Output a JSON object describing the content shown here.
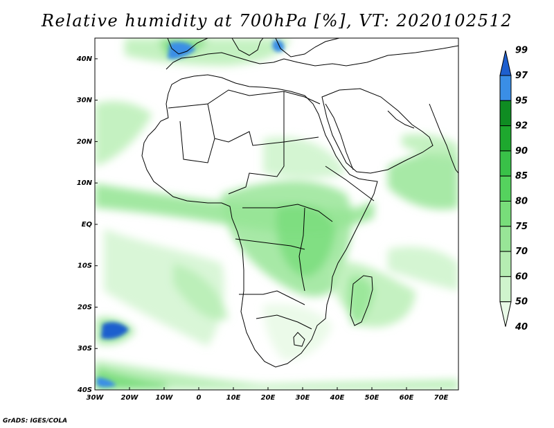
{
  "title": "Relative humidity at 700hPa [%], VT: 2020102512",
  "credit": "GrADS: IGES/COLA",
  "map": {
    "lon_range": [
      -30,
      75
    ],
    "lat_range": [
      -40,
      45
    ],
    "lon_labels": [
      "30W",
      "20W",
      "10W",
      "0",
      "10E",
      "20E",
      "30E",
      "40E",
      "50E",
      "60E",
      "70E"
    ],
    "lat_labels": [
      "40N",
      "30N",
      "20N",
      "10N",
      "EQ",
      "10S",
      "20S",
      "30S",
      "40S"
    ]
  },
  "colorbar": {
    "labels": [
      "99",
      "97",
      "95",
      "92",
      "90",
      "85",
      "80",
      "75",
      "70",
      "60",
      "50",
      "40"
    ],
    "colors": [
      "#1e5fce",
      "#3a8ee6",
      "#0f8c22",
      "#1ea82e",
      "#39c148",
      "#55d25e",
      "#78dd7a",
      "#98e597",
      "#b5edb2",
      "#cff4cd",
      "#e9fae7"
    ]
  }
}
